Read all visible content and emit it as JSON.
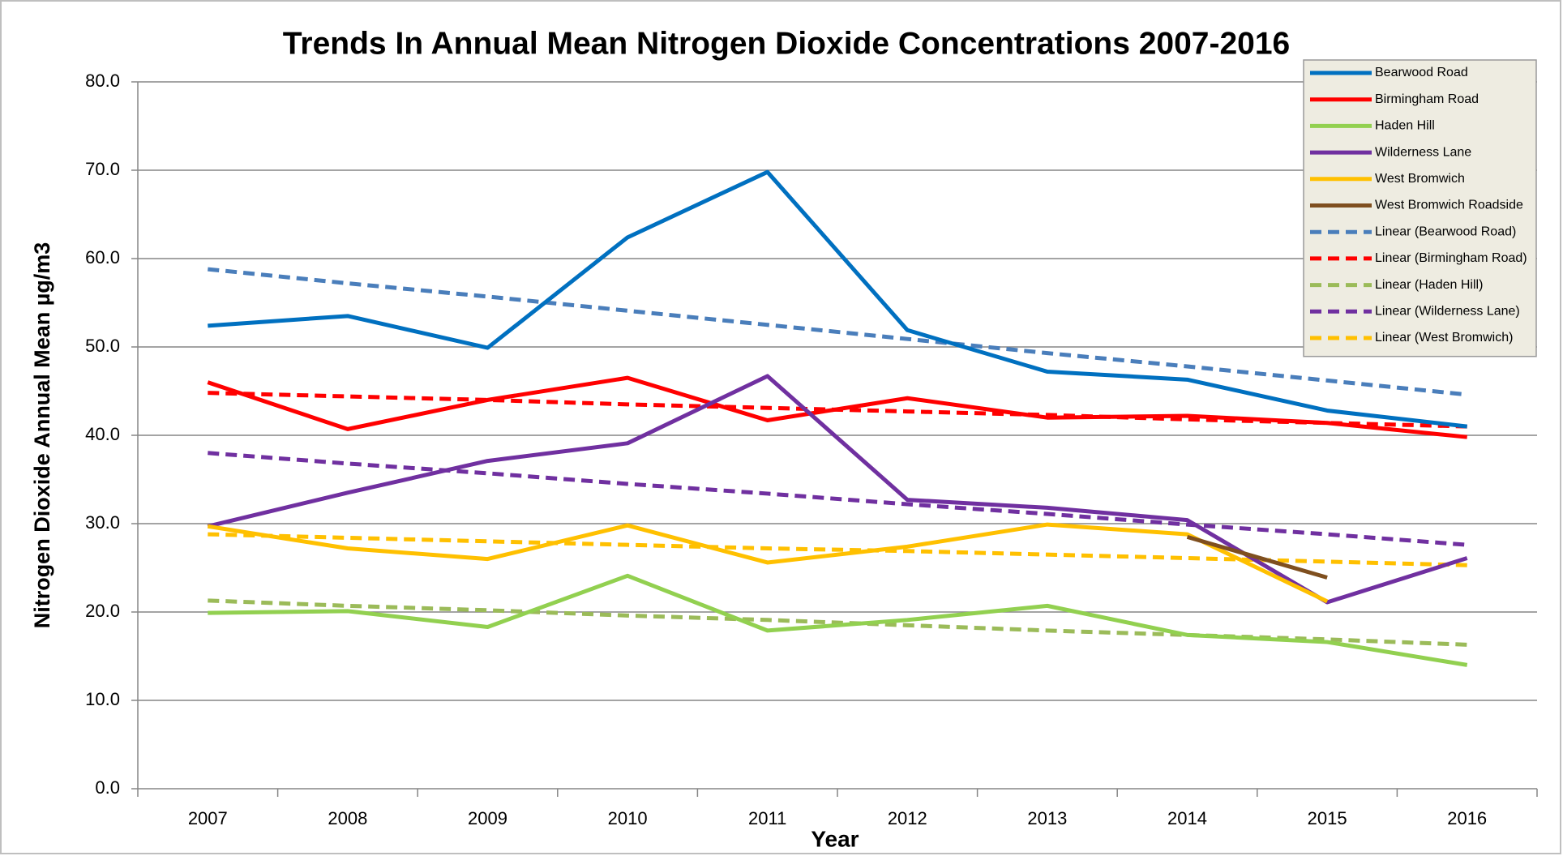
{
  "chart_data": {
    "type": "line",
    "title": "Trends In Annual Mean Nitrogen Dioxide Concentrations 2007-2016",
    "x_label": "Year",
    "y_label": "Nitrogen Dioxide Annual Mean µg/m3",
    "categories": [
      "2007",
      "2008",
      "2009",
      "2010",
      "2011",
      "2012",
      "2013",
      "2014",
      "2015",
      "2016"
    ],
    "ylim": [
      0,
      80
    ],
    "yticks": [
      {
        "value": 0,
        "label": "0.0"
      },
      {
        "value": 10,
        "label": "10.0"
      },
      {
        "value": 20,
        "label": "20.0"
      },
      {
        "value": 30,
        "label": "30.0"
      },
      {
        "value": 40,
        "label": "40.0"
      },
      {
        "value": 50,
        "label": "50.0"
      },
      {
        "value": 60,
        "label": "60.0"
      },
      {
        "value": 70,
        "label": "70.0"
      },
      {
        "value": 80,
        "label": "80.0"
      }
    ],
    "grid": true,
    "legend": "top-right",
    "series": [
      {
        "name": "Bearwood Road",
        "color": "#0070c0",
        "style": "solid",
        "values": [
          52.4,
          53.5,
          49.9,
          62.4,
          69.8,
          51.9,
          47.2,
          46.3,
          42.8,
          41.0
        ]
      },
      {
        "name": "Birmingham Road",
        "color": "#ff0000",
        "style": "solid",
        "values": [
          46.0,
          40.7,
          44.0,
          46.5,
          41.7,
          44.2,
          42.0,
          42.2,
          41.4,
          39.8
        ]
      },
      {
        "name": "Haden Hill",
        "color": "#92d050",
        "style": "solid",
        "values": [
          19.9,
          20.1,
          18.3,
          24.1,
          17.9,
          19.1,
          20.7,
          17.4,
          16.6,
          14.0
        ]
      },
      {
        "name": "Wilderness Lane",
        "color": "#7030a0",
        "style": "solid",
        "values": [
          29.7,
          33.5,
          37.1,
          39.1,
          46.7,
          32.7,
          31.8,
          30.4,
          21.1,
          26.1
        ]
      },
      {
        "name": "West Bromwich",
        "color": "#ffc000",
        "style": "solid",
        "values": [
          29.7,
          27.2,
          26.0,
          29.8,
          25.6,
          27.4,
          29.9,
          28.8,
          21.2,
          null
        ]
      },
      {
        "name": "West Bromwich Roadside",
        "color": "#7f4f1f",
        "style": "solid",
        "values": [
          null,
          null,
          null,
          null,
          null,
          null,
          null,
          28.5,
          23.9,
          null
        ]
      },
      {
        "name": "Linear (Bearwood Road)",
        "color": "#4a7ebb",
        "style": "dashed",
        "values": [
          58.8,
          57.2,
          55.7,
          54.1,
          52.5,
          50.9,
          49.3,
          47.8,
          46.2,
          44.6
        ]
      },
      {
        "name": "Linear (Birmingham Road)",
        "color": "#ff0000",
        "style": "dashed",
        "values": [
          44.8,
          44.4,
          44.0,
          43.5,
          43.1,
          42.7,
          42.3,
          41.8,
          41.4,
          41.0
        ]
      },
      {
        "name": "Linear (Haden Hill)",
        "color": "#9bbb59",
        "style": "dashed",
        "values": [
          21.3,
          20.7,
          20.2,
          19.6,
          19.1,
          18.5,
          17.9,
          17.4,
          16.9,
          16.3
        ]
      },
      {
        "name": "Linear (Wilderness Lane)",
        "color": "#7030a0",
        "style": "dashed",
        "values": [
          38.0,
          36.8,
          35.7,
          34.5,
          33.4,
          32.2,
          31.1,
          29.9,
          28.8,
          27.6
        ]
      },
      {
        "name": "Linear (West Bromwich)",
        "color": "#ffc000",
        "style": "dashed",
        "values": [
          28.8,
          28.4,
          28.0,
          27.6,
          27.2,
          26.9,
          26.5,
          26.1,
          25.7,
          25.3
        ]
      }
    ]
  }
}
